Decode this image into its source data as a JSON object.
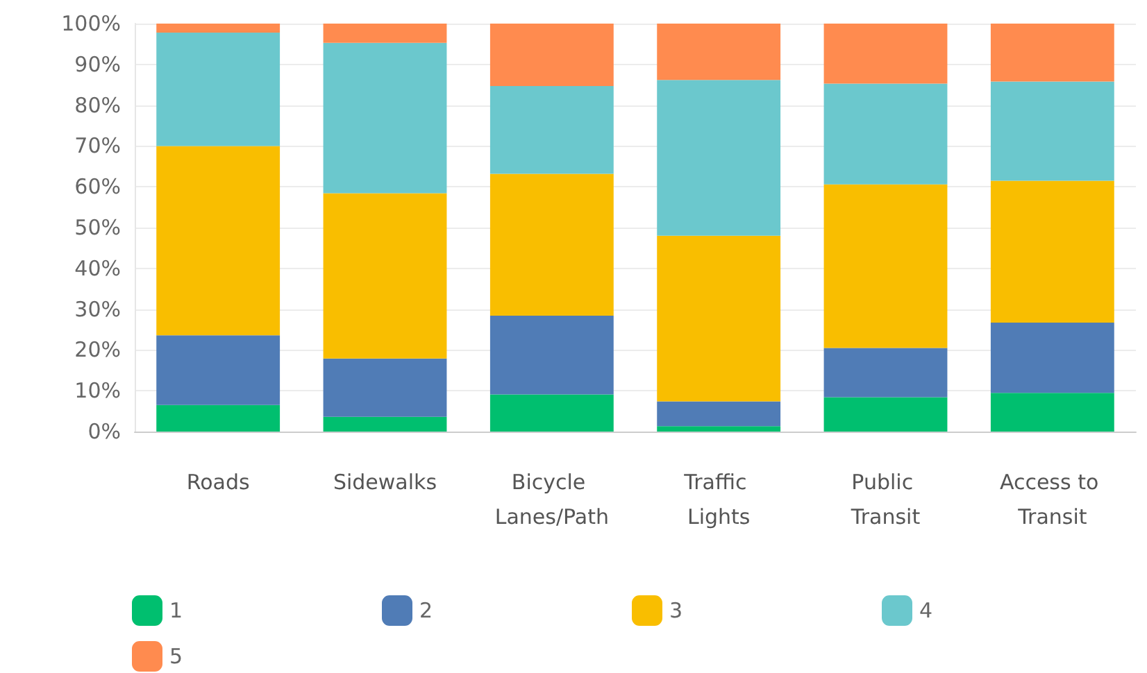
{
  "chart_data": {
    "type": "bar",
    "stacked": true,
    "categories": [
      "Roads",
      "Sidewalks",
      "Bicycle Lanes/Path",
      "Traffic Lights",
      "Public Transit",
      "Access to Transit"
    ],
    "series": [
      {
        "name": "1",
        "color": "#00bf6f",
        "values": [
          6.5,
          3.6,
          9.1,
          1.3,
          8.4,
          9.5
        ]
      },
      {
        "name": "2",
        "color": "#507cb6",
        "values": [
          17.1,
          14.3,
          19.3,
          6.1,
          12.1,
          17.2
        ]
      },
      {
        "name": "3",
        "color": "#f9be00",
        "values": [
          46.4,
          40.5,
          34.8,
          40.6,
          40.1,
          34.8
        ]
      },
      {
        "name": "4",
        "color": "#6bc8cd",
        "values": [
          27.8,
          36.9,
          21.5,
          38.2,
          24.7,
          24.3
        ]
      },
      {
        "name": "5",
        "color": "#ff8b4f",
        "values": [
          2.2,
          4.7,
          15.3,
          13.8,
          14.7,
          14.2
        ]
      }
    ],
    "ylim": [
      0,
      100
    ],
    "yticks": [
      {
        "value": 0,
        "label": "0%"
      },
      {
        "value": 10,
        "label": "10%"
      },
      {
        "value": 20,
        "label": "20%"
      },
      {
        "value": 30,
        "label": "30%"
      },
      {
        "value": 40,
        "label": "40%"
      },
      {
        "value": 50,
        "label": "50%"
      },
      {
        "value": 60,
        "label": "60%"
      },
      {
        "value": 70,
        "label": "70%"
      },
      {
        "value": 80,
        "label": "80%"
      },
      {
        "value": 90,
        "label": "90%"
      },
      {
        "value": 100,
        "label": "100%"
      }
    ],
    "grid": "y",
    "legend": "bottom left"
  }
}
